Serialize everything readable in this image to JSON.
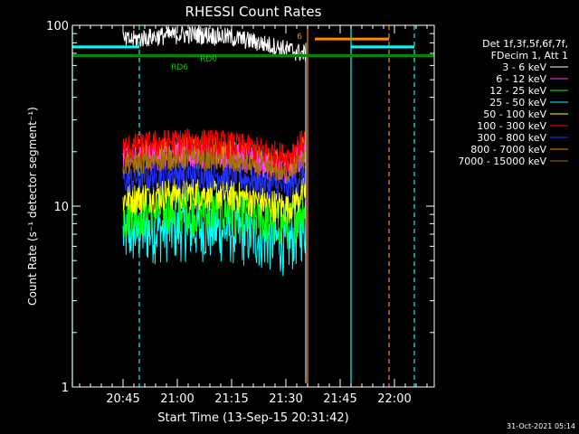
{
  "chart_data": {
    "type": "line",
    "title": "RHESSI Count Rates",
    "xlabel": "Start Time (13-Sep-15 20:31:42)",
    "ylabel": "Count Rate (s⁻¹ detector segment⁻¹)",
    "yscale": "log",
    "ylim": [
      1,
      100
    ],
    "xlim_minutes_since_2031": [
      0,
      100
    ],
    "y_ticks": [
      {
        "v": 1,
        "label": "1"
      },
      {
        "v": 10,
        "label": "10"
      },
      {
        "v": 100,
        "label": "100"
      }
    ],
    "x_ticks": [
      {
        "t": 14.0,
        "label": "20:45"
      },
      {
        "t": 29.0,
        "label": "21:00"
      },
      {
        "t": 44.0,
        "label": "21:15"
      },
      {
        "t": 59.0,
        "label": "21:30"
      },
      {
        "t": 74.0,
        "label": "21:45"
      },
      {
        "t": 89.0,
        "label": "22:00"
      }
    ],
    "legend_header": [
      "Det 1f,3f,5f,6f,7f,",
      "FDecim 1, Att 1"
    ],
    "legend_position": "right",
    "series": [
      {
        "name": "3 - 6 keV",
        "color": "#ffffff",
        "t_range": [
          14,
          64.5
        ],
        "level": 82,
        "amp": 0.04
      },
      {
        "name": "6 - 12 keV",
        "color": "#ff40ff",
        "t_range": [
          14,
          64.5
        ],
        "level": 18,
        "amp": 0.06
      },
      {
        "name": "12 - 25 keV",
        "color": "#00ff00",
        "t_range": [
          14,
          64.5
        ],
        "level": 9,
        "amp": 0.1
      },
      {
        "name": "25 - 50 keV",
        "color": "#00ffff",
        "t_range": [
          14,
          64.5
        ],
        "level": 7,
        "amp": 0.12
      },
      {
        "name": "50 - 100 keV",
        "color": "#ffff00",
        "t_range": [
          14,
          64.5
        ],
        "level": 11,
        "amp": 0.07
      },
      {
        "name": "100 - 300 keV",
        "color": "#ff0000",
        "t_range": [
          14,
          64.5
        ],
        "level": 21,
        "amp": 0.06
      },
      {
        "name": "300 - 800 keV",
        "color": "#2030ff",
        "t_range": [
          14,
          64.5
        ],
        "level": 14,
        "amp": 0.06
      },
      {
        "name": "800 - 7000 keV",
        "color": "#ff8800",
        "t_range": [
          14,
          64.5
        ],
        "level": 19,
        "amp": 0.06
      },
      {
        "name": "7000 - 15000 keV",
        "color": "#a07000",
        "t_range": [
          14,
          64.5
        ],
        "level": 17,
        "amp": 0.05
      }
    ],
    "flag_bars": [
      {
        "name": "SAA/night flag",
        "color": "#00ffff",
        "y": 76,
        "segments": [
          [
            0,
            18.5
          ],
          [
            77,
            94.5
          ]
        ]
      },
      {
        "name": "orbit flag",
        "color": "#ff8800",
        "y": 84,
        "segments": [
          [
            67,
            87.5
          ]
        ]
      },
      {
        "name": "attenuator flag",
        "color": "#008800",
        "y": 68,
        "segments": [
          [
            0,
            100
          ]
        ]
      }
    ],
    "vertical_markers": [
      {
        "color": "#00ffff",
        "t": 0,
        "style": "solid"
      },
      {
        "color": "#00ffff",
        "t": 18.5,
        "style": "dashed"
      },
      {
        "color": "#00ffff",
        "t": 77,
        "style": "solid"
      },
      {
        "color": "#00ffff",
        "t": 94.5,
        "style": "dashed"
      },
      {
        "color": "#ff8800",
        "t": 65,
        "style": "solid"
      },
      {
        "color": "#ff8800",
        "t": 87.5,
        "style": "dashed"
      }
    ],
    "annotations": [
      {
        "text": "RD6",
        "t": 32,
        "y": 57,
        "color": "#00cc00"
      },
      {
        "text": "RD0",
        "t": 40,
        "y": 63,
        "color": "#00cc00"
      },
      {
        "text": "6",
        "t": 63.5,
        "y": 84,
        "color": "#ff8800"
      }
    ]
  },
  "timestamp": "31-Oct-2021 05:14"
}
